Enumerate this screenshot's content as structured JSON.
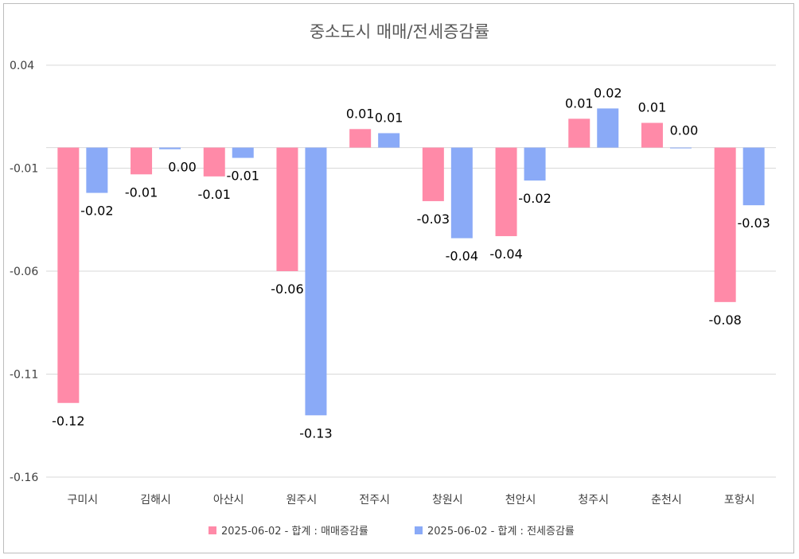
{
  "chart_data": {
    "type": "bar",
    "title": "중소도시 매매/전세증감률",
    "categories": [
      "구미시",
      "김해시",
      "아산시",
      "원주시",
      "전주시",
      "창원시",
      "천안시",
      "청주시",
      "춘천시",
      "포항시"
    ],
    "series": [
      {
        "name": "2025-06-02 - 합계 : 매매증감률",
        "color": "#ff8aa8",
        "values": [
          -0.124,
          -0.013,
          -0.014,
          -0.06,
          0.009,
          -0.026,
          -0.043,
          0.014,
          0.012,
          -0.075
        ],
        "labels": [
          "-0.12",
          "-0.01",
          "-0.01",
          "-0.06",
          "0.01",
          "-0.03",
          "-0.04",
          "0.01",
          "0.01",
          "-0.08"
        ]
      },
      {
        "name": "2025-06-02 - 합계 : 전세증감률",
        "color": "#8aaaf7",
        "values": [
          -0.022,
          -0.0008,
          -0.005,
          -0.13,
          0.007,
          -0.044,
          -0.016,
          0.019,
          0.0,
          -0.028
        ],
        "labels": [
          "-0.02",
          "0.00",
          "-0.01",
          "-0.13",
          "0.01",
          "-0.04",
          "-0.02",
          "0.02",
          "0.00",
          "-0.03"
        ]
      }
    ],
    "yticks": [
      "0.04",
      "-0.01",
      "-0.06",
      "-0.11",
      "-0.16"
    ],
    "ytick_values": [
      0.04,
      -0.01,
      -0.06,
      -0.11,
      -0.16
    ],
    "ylim": [
      -0.16,
      0.04
    ],
    "grid": true,
    "legend_position": "bottom",
    "gridline_color": "#d9d9d9",
    "baseline_color": "#d9d9d9"
  }
}
